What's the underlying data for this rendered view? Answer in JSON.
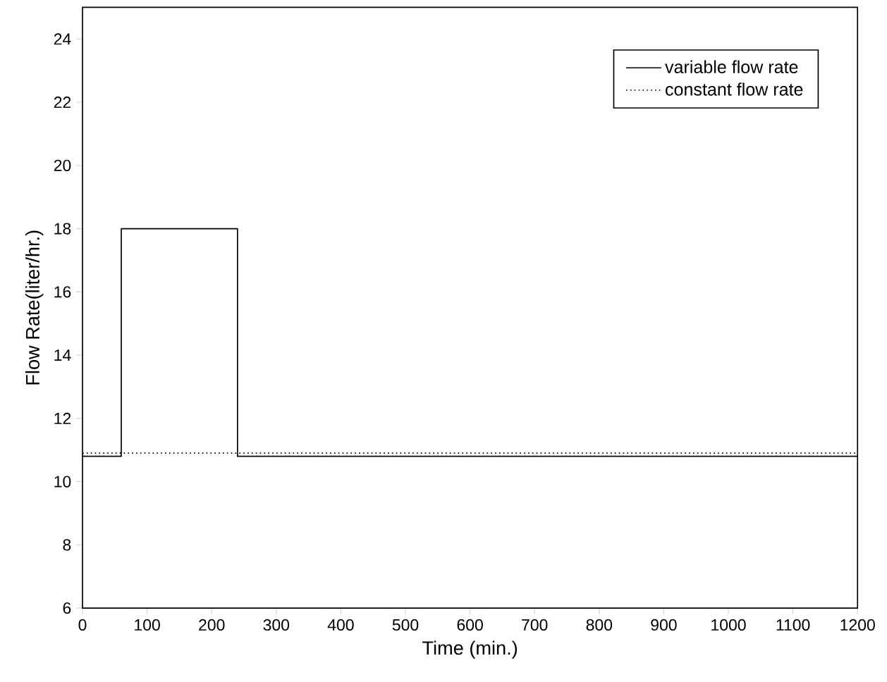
{
  "chart_data": {
    "type": "step",
    "xlabel": "Time (min.)",
    "ylabel": "Flow Rate(liter/hr.)",
    "xlim": [
      0,
      1200
    ],
    "xticks": [
      0,
      100,
      200,
      300,
      400,
      500,
      600,
      700,
      800,
      900,
      1000,
      1100,
      1200
    ],
    "ylim": [
      6,
      25
    ],
    "yticks": [
      6,
      8,
      10,
      12,
      14,
      16,
      18,
      20,
      22,
      24
    ],
    "series": [
      {
        "name": "variable flow rate",
        "color": "#000000",
        "line_style": "solid",
        "x": [
          0,
          60,
          240,
          1200
        ],
        "values": [
          10.8,
          18,
          10.8,
          10.8
        ]
      },
      {
        "name": "constant flow rate",
        "color": "#000000",
        "line_style": "dotted",
        "x": [
          0,
          1200
        ],
        "values": [
          10.9,
          10.9
        ]
      }
    ],
    "legend": "top right",
    "grid": false,
    "marker": "none"
  }
}
